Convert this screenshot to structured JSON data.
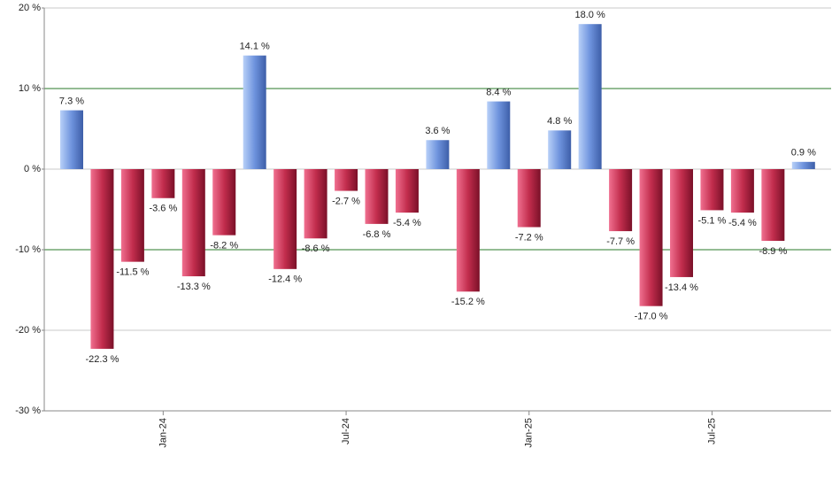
{
  "chart_data": {
    "type": "bar",
    "categories": [
      null,
      null,
      null,
      "Jan-24",
      null,
      null,
      null,
      null,
      null,
      "Jul-24",
      null,
      null,
      null,
      null,
      null,
      "Jan-25",
      null,
      null,
      null,
      null,
      null,
      "Jul-25",
      null,
      null,
      null
    ],
    "values": [
      7.3,
      -22.3,
      -11.5,
      -3.6,
      -13.3,
      -8.2,
      14.1,
      -12.4,
      -8.6,
      -2.7,
      -6.8,
      -5.4,
      3.6,
      -15.2,
      8.4,
      -7.2,
      4.8,
      18.0,
      -7.7,
      -17.0,
      -13.4,
      -5.1,
      -5.4,
      -8.9,
      0.9
    ],
    "value_labels": [
      "7.3 %",
      "-22.3 %",
      "-11.5 %",
      "-3.6 %",
      "-13.3 %",
      "-8.2 %",
      "14.1 %",
      "-12.4 %",
      "-8.6 %",
      "-2.7 %",
      "-6.8 %",
      "-5.4 %",
      "3.6 %",
      "-15.2 %",
      "8.4 %",
      "-7.2 %",
      "4.8 %",
      "18.0 %",
      "-7.7 %",
      "-17.0 %",
      "-13.4 %",
      "-5.1 %",
      "-5.4 %",
      "-8.9 %",
      "0.9 %"
    ],
    "color_positive": "#6e93dd",
    "color_negative": "#c22d4d",
    "ylim": [
      -30,
      20
    ],
    "yticks": [
      {
        "value": -30,
        "label": "-30 %"
      },
      {
        "value": -20,
        "label": "-20 %"
      },
      {
        "value": -10,
        "label": "-10 %"
      },
      {
        "value": 0,
        "label": "0 %"
      },
      {
        "value": 10,
        "label": "10 %"
      },
      {
        "value": 20,
        "label": "20 %"
      }
    ],
    "grid": true
  }
}
